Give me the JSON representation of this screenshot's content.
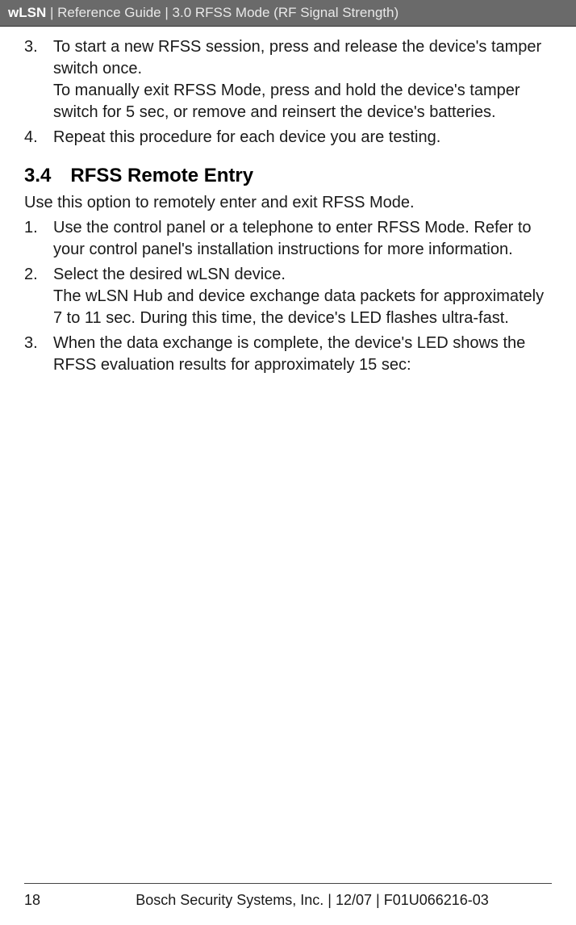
{
  "header": {
    "product": "wLSN",
    "separator": " | ",
    "doc_title": "Reference Guide",
    "section": "3.0 RFSS Mode (RF Signal Strength)"
  },
  "top_list": {
    "item3": {
      "num": "3.",
      "p1": "To start a new RFSS session, press and release the device's tamper switch once.",
      "p2": "To manually exit RFSS Mode, press and hold the device's tamper switch for 5 sec, or remove and reinsert the device's batteries."
    },
    "item4": {
      "num": "4.",
      "text": "Repeat this procedure for each device you are testing."
    }
  },
  "section34": {
    "num": "3.4",
    "title": "RFSS Remote Entry",
    "intro": "Use this option to remotely enter and exit RFSS Mode.",
    "list": {
      "item1": {
        "num": "1.",
        "text": "Use the control panel or a telephone to enter RFSS Mode. Refer to your control panel's installation instructions for more information."
      },
      "item2": {
        "num": "2.",
        "p1": "Select the desired wLSN device.",
        "p2": "The wLSN Hub and device exchange data packets for approximately 7 to 11 sec. During this time, the device's LED flashes ultra-fast."
      },
      "item3": {
        "num": "3.",
        "text": "When the data exchange is complete, the device's LED shows the RFSS evaluation results for approximately 15 sec:"
      }
    }
  },
  "footer": {
    "page": "18",
    "text": "Bosch Security Systems, Inc. | 12/07 | F01U066216-03"
  }
}
